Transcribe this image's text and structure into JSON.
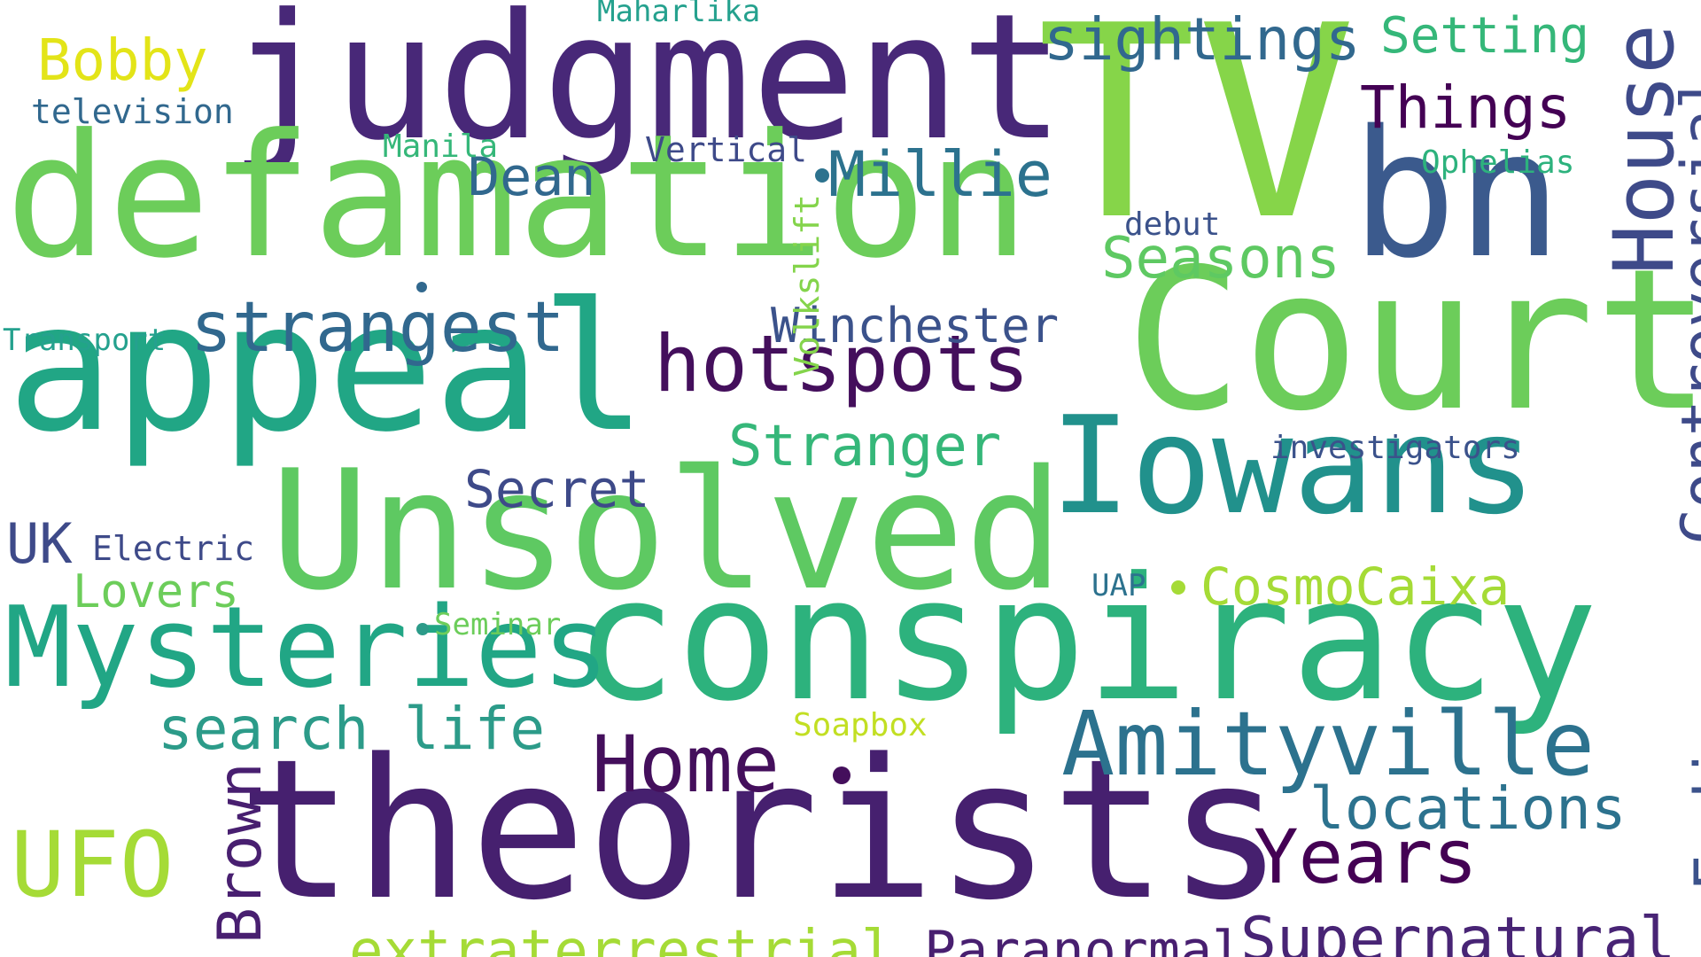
{
  "words": [
    {
      "id": "word-judgment",
      "text": "judgment",
      "color": "#482878"
    },
    {
      "id": "word-tv",
      "text": "TV",
      "color": "#86d549"
    },
    {
      "id": "word-defamation",
      "text": "defamation",
      "color": "#6ccd5a"
    },
    {
      "id": "word-bn",
      "text": "bn",
      "color": "#3b5a8d"
    },
    {
      "id": "word-court",
      "text": "Court",
      "color": "#6ccd5a"
    },
    {
      "id": "word-appeal",
      "text": "appeal",
      "color": "#21a685"
    },
    {
      "id": "word-iowans",
      "text": "Iowans",
      "color": "#21918c"
    },
    {
      "id": "word-unsolved",
      "text": "Unsolved",
      "color": "#5ec962"
    },
    {
      "id": "word-conspiracy",
      "text": "conspiracy",
      "color": "#2db27d"
    },
    {
      "id": "word-theorists",
      "text": "theorists",
      "color": "#46206f"
    },
    {
      "id": "word-mysteries",
      "text": "Mysteries",
      "color": "#21a685"
    },
    {
      "id": "word-amityville",
      "text": "Amityville",
      "color": "#2c728e"
    },
    {
      "id": "word-house",
      "text": "House",
      "color": "#3e4a89"
    },
    {
      "id": "word-controversial",
      "text": "Controversial",
      "color": "#3e4a89"
    },
    {
      "id": "word-hotspots",
      "text": "hotspots",
      "color": "#440f5c"
    },
    {
      "id": "word-strangest",
      "text": "strangest",
      "color": "#31688e"
    },
    {
      "id": "word-winchester",
      "text": "Winchester",
      "color": "#3b528b"
    },
    {
      "id": "word-millie",
      "text": "Millie",
      "color": "#2c728e"
    },
    {
      "id": "word-dean",
      "text": "Dean",
      "color": "#31688e"
    },
    {
      "id": "word-sightings",
      "text": "sightings",
      "color": "#31688e"
    },
    {
      "id": "word-setting",
      "text": "Setting",
      "color": "#35b779"
    },
    {
      "id": "word-things",
      "text": "Things",
      "color": "#440154"
    },
    {
      "id": "word-bobby",
      "text": "Bobby",
      "color": "#e3e418"
    },
    {
      "id": "word-television",
      "text": "television",
      "color": "#31688e"
    },
    {
      "id": "word-maharlika",
      "text": "Maharlika",
      "color": "#25a18e"
    },
    {
      "id": "word-manila",
      "text": "Manila",
      "color": "#35b779"
    },
    {
      "id": "word-vertical",
      "text": "Vertical",
      "color": "#3e4a89"
    },
    {
      "id": "word-volkslift",
      "text": "Volkslift",
      "color": "#84d44b"
    },
    {
      "id": "word-ophelias",
      "text": "Ophelias",
      "color": "#2db27d"
    },
    {
      "id": "word-debut",
      "text": "debut",
      "color": "#3b528b"
    },
    {
      "id": "word-seasons",
      "text": "Seasons",
      "color": "#5ec962"
    },
    {
      "id": "word-transport",
      "text": "Transport",
      "color": "#25a18e"
    },
    {
      "id": "word-stranger",
      "text": "Stranger",
      "color": "#35b779"
    },
    {
      "id": "word-secret",
      "text": "Secret",
      "color": "#3e4a89"
    },
    {
      "id": "word-investigators",
      "text": "investigators",
      "color": "#3b528b"
    },
    {
      "id": "word-uk",
      "text": "UK",
      "color": "#3e4a89"
    },
    {
      "id": "word-electric",
      "text": "Electric",
      "color": "#3e4a89"
    },
    {
      "id": "word-lovers",
      "text": "Lovers",
      "color": "#6ccd5a"
    },
    {
      "id": "word-uap",
      "text": "UAP",
      "color": "#2c728e"
    },
    {
      "id": "word-cosmocaixa",
      "text": "CosmoCaixa",
      "color": "#a5db36"
    },
    {
      "id": "word-seminar",
      "text": "Seminar",
      "color": "#6ccd5a"
    },
    {
      "id": "word-soapbox",
      "text": "Soapbox",
      "color": "#c2df23"
    },
    {
      "id": "word-search-life",
      "text": "search life",
      "color": "#2c9b89"
    },
    {
      "id": "word-home",
      "text": "Home",
      "color": "#440f5c"
    },
    {
      "id": "word-locations",
      "text": "locations",
      "color": "#2c728e"
    },
    {
      "id": "word-endings",
      "text": "Endings",
      "color": "#3b528b"
    },
    {
      "id": "word-years",
      "text": "Years",
      "color": "#440154"
    },
    {
      "id": "word-ufo",
      "text": "UFO",
      "color": "#a5db36"
    },
    {
      "id": "word-brown",
      "text": "Brown",
      "color": "#481f70"
    },
    {
      "id": "word-extraterrestrial",
      "text": "extraterrestrial",
      "color": "#a5db36"
    },
    {
      "id": "word-paranormal",
      "text": "Paranormal",
      "color": "#481f70"
    },
    {
      "id": "word-supernatural",
      "text": "Supernatural",
      "color": "#482475"
    }
  ]
}
